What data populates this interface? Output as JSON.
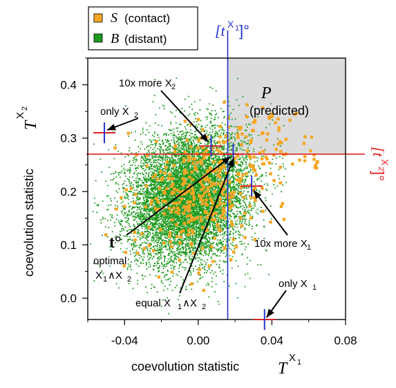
{
  "chart_data": {
    "type": "scatter",
    "xlabel": "coevolution statistic",
    "xlabel_symbol": "T",
    "xlabel_sup": "X",
    "xlabel_sub": "1",
    "ylabel": "coevolution statistic",
    "ylabel_symbol": "T",
    "ylabel_sup": "X",
    "ylabel_sub": "2",
    "xlim": [
      -0.06,
      0.08
    ],
    "ylim": [
      -0.04,
      0.45
    ],
    "x_ticks": [
      {
        "value": -0.04,
        "label": "-0.04"
      },
      {
        "value": 0.0,
        "label": "0.00"
      },
      {
        "value": 0.04,
        "label": "0.04"
      },
      {
        "value": 0.08,
        "label": "0.08"
      }
    ],
    "y_ticks": [
      {
        "value": 0.0,
        "label": "0.0"
      },
      {
        "value": 0.1,
        "label": "0.1"
      },
      {
        "value": 0.2,
        "label": "0.2"
      },
      {
        "value": 0.3,
        "label": "0.3"
      },
      {
        "value": 0.4,
        "label": "0.4"
      }
    ],
    "legend": {
      "position": "top-left",
      "entries": [
        {
          "symbol": "S",
          "text": "(contact)",
          "color": "#f5a623"
        },
        {
          "symbol": "B",
          "text": "(distant)",
          "color": "#1f9a1f"
        }
      ]
    },
    "series": [
      {
        "name": "S (contact)",
        "color": "#f5a623",
        "marker": "square",
        "center": [
          0.003,
          0.2
        ],
        "spread": [
          0.017,
          0.06
        ],
        "approx_count": 500
      },
      {
        "name": "B (distant)",
        "color": "#1f9a1f",
        "marker": "dot",
        "center": [
          -0.005,
          0.19
        ],
        "spread": [
          0.016,
          0.06
        ],
        "approx_count": 15000
      }
    ],
    "threshold_x": {
      "value": 0.016,
      "label": "[t",
      "label_sup": "X",
      "label_sub": "1",
      "label_suffix": "]°",
      "color": "#2233cc"
    },
    "threshold_y": {
      "value": 0.27,
      "label": "[t",
      "label_sup": "X",
      "label_sub": "2",
      "label_suffix": "]°",
      "color": "#e02020"
    },
    "predicted_region": {
      "label_symbol": "P",
      "label_text": "(predicted)",
      "color": "#dcdcdc"
    },
    "crosshair_color_h": "#e02020",
    "crosshair_color_v": "#2233cc",
    "annotations": [
      {
        "id": "only-x2",
        "text": "only X",
        "sub": "2",
        "point": [
          -0.051,
          0.31
        ],
        "text_at": [
          -0.054,
          0.35
        ]
      },
      {
        "id": "10x-more-x2",
        "text": "10x more X",
        "sub": "2",
        "point": [
          0.007,
          0.285
        ],
        "text_at": [
          -0.03,
          0.41
        ]
      },
      {
        "id": "t-opt",
        "text": "t°",
        "point": [
          0.019,
          0.27
        ],
        "text_at": [
          -0.05,
          0.09
        ]
      },
      {
        "id": "10x-more-x1",
        "text": "10x more X",
        "sub": "1",
        "point": [
          0.029,
          0.21
        ],
        "text_at": [
          0.024,
          0.085
        ]
      },
      {
        "id": "equal",
        "text": "equal X",
        "sub": "1",
        "text2": "∧X",
        "sub2": "2",
        "point": [
          0.02,
          0.27
        ],
        "text_at": [
          -0.035,
          -0.02
        ]
      },
      {
        "id": "only-x1",
        "text": "only X",
        "sub": "1",
        "point": [
          0.036,
          -0.04
        ],
        "text_at": [
          0.04,
          -0.012
        ]
      }
    ],
    "optimal_label": {
      "line1": "optimal",
      "line2a": "X",
      "sub_a": "1",
      "op": "∧X",
      "sub_b": "2"
    },
    "crosshairs": [
      {
        "x": -0.051,
        "y": 0.31
      },
      {
        "x": 0.007,
        "y": 0.285
      },
      {
        "x": 0.019,
        "y": 0.27
      },
      {
        "x": 0.029,
        "y": 0.21
      },
      {
        "x": 0.036,
        "y": -0.04
      }
    ]
  }
}
